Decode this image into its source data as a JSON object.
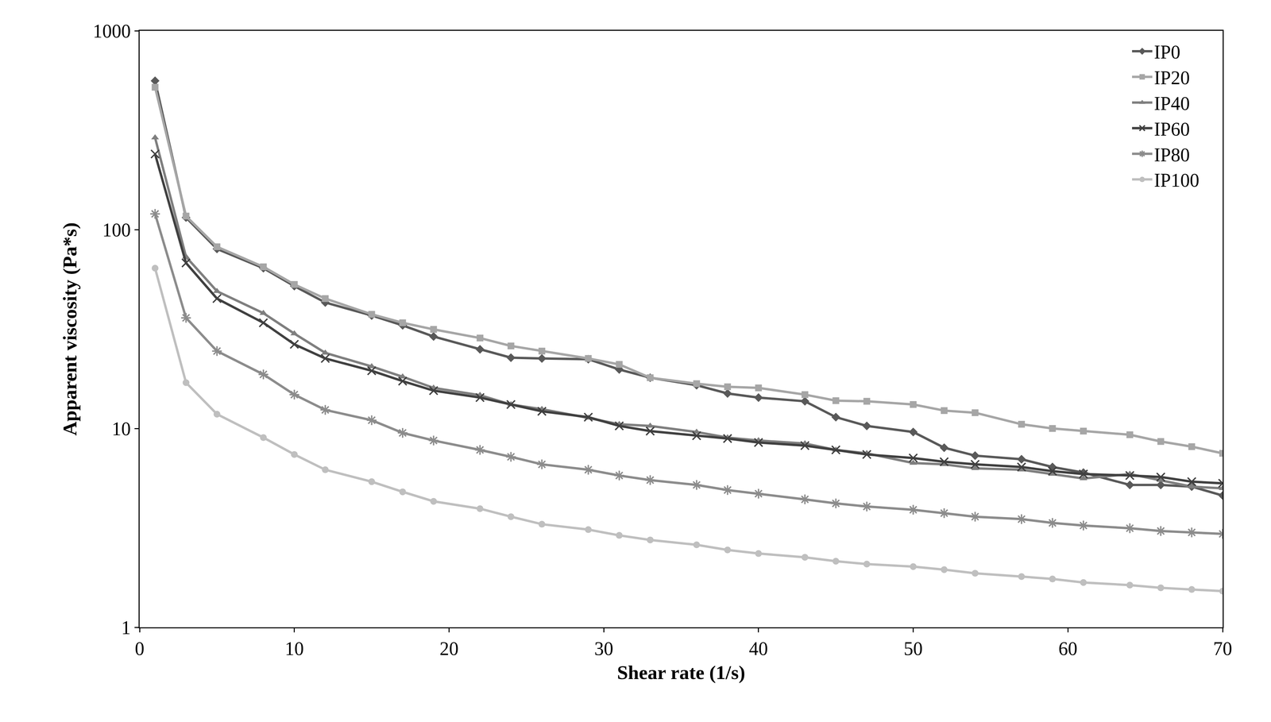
{
  "chart_data": {
    "type": "line",
    "x_label": "Shear rate (1/s)",
    "y_label": "Apparent viscosity (Pa*s)",
    "log": "y",
    "grid": false,
    "legend": "top right",
    "xlim": [
      0,
      70
    ],
    "xticks": [
      0,
      10,
      20,
      30,
      40,
      50,
      60,
      70
    ],
    "ylim": [
      1,
      1000
    ],
    "yticks": [
      1,
      10,
      100,
      1000
    ],
    "x": [
      1,
      3,
      5,
      8,
      10,
      12,
      15,
      17,
      19,
      22,
      24,
      26,
      29,
      31,
      33,
      36,
      38,
      40,
      43,
      45,
      47,
      50,
      52,
      54,
      57,
      59,
      61,
      64,
      66,
      68,
      70
    ],
    "series": [
      {
        "name": "IP0",
        "color": "#595959",
        "marker": "diamond",
        "values": [
          560,
          115,
          80,
          64,
          52,
          43,
          37,
          33,
          29,
          25,
          22.7,
          22.5,
          22.3,
          19.8,
          18,
          16.5,
          15,
          14.3,
          13.7,
          11.4,
          10.3,
          9.6,
          8,
          7.3,
          7,
          6.4,
          6,
          5.2,
          5.2,
          5.1,
          4.6
        ]
      },
      {
        "name": "IP20",
        "color": "#a6a6a6",
        "marker": "square",
        "values": [
          520,
          117,
          82,
          65,
          53,
          45,
          37.5,
          34,
          31.5,
          28.5,
          26,
          24.5,
          22.5,
          21,
          18,
          16.8,
          16.2,
          16,
          14.8,
          13.8,
          13.7,
          13.2,
          12.3,
          12,
          10.5,
          10,
          9.7,
          9.3,
          8.6,
          8.1,
          7.5
        ]
      },
      {
        "name": "IP40",
        "color": "#7f7f7f",
        "marker": "triangle",
        "values": [
          290,
          73,
          49,
          38,
          30,
          24,
          20.5,
          18.2,
          16,
          14.7,
          13.2,
          12.5,
          11.3,
          10.5,
          10.3,
          9.6,
          9,
          8.7,
          8.4,
          7.8,
          7.5,
          6.7,
          6.6,
          6.3,
          6.2,
          5.9,
          5.6,
          5.9,
          5.5,
          5.1,
          5.0
        ]
      },
      {
        "name": "IP60",
        "color": "#404040",
        "marker": "x",
        "values": [
          240,
          68,
          45,
          34,
          26.5,
          22.5,
          19.5,
          17.3,
          15.5,
          14.3,
          13.2,
          12.2,
          11.4,
          10.3,
          9.7,
          9.2,
          8.9,
          8.5,
          8.2,
          7.8,
          7.4,
          7.1,
          6.8,
          6.6,
          6.4,
          6.1,
          5.9,
          5.8,
          5.7,
          5.4,
          5.3
        ]
      },
      {
        "name": "IP80",
        "color": "#8c8c8c",
        "marker": "asterisk",
        "values": [
          120,
          36,
          24.5,
          18.7,
          14.8,
          12.4,
          11,
          9.5,
          8.7,
          7.8,
          7.2,
          6.6,
          6.2,
          5.8,
          5.5,
          5.2,
          4.9,
          4.7,
          4.4,
          4.2,
          4.05,
          3.9,
          3.75,
          3.6,
          3.5,
          3.35,
          3.25,
          3.15,
          3.05,
          3.0,
          2.95
        ]
      },
      {
        "name": "IP100",
        "color": "#bfbfbf",
        "marker": "circle",
        "values": [
          64,
          17,
          11.8,
          9,
          7.4,
          6.2,
          5.4,
          4.8,
          4.3,
          3.95,
          3.6,
          3.3,
          3.1,
          2.9,
          2.75,
          2.6,
          2.45,
          2.35,
          2.25,
          2.15,
          2.08,
          2.02,
          1.95,
          1.87,
          1.8,
          1.75,
          1.68,
          1.63,
          1.58,
          1.55,
          1.52
        ]
      }
    ]
  }
}
